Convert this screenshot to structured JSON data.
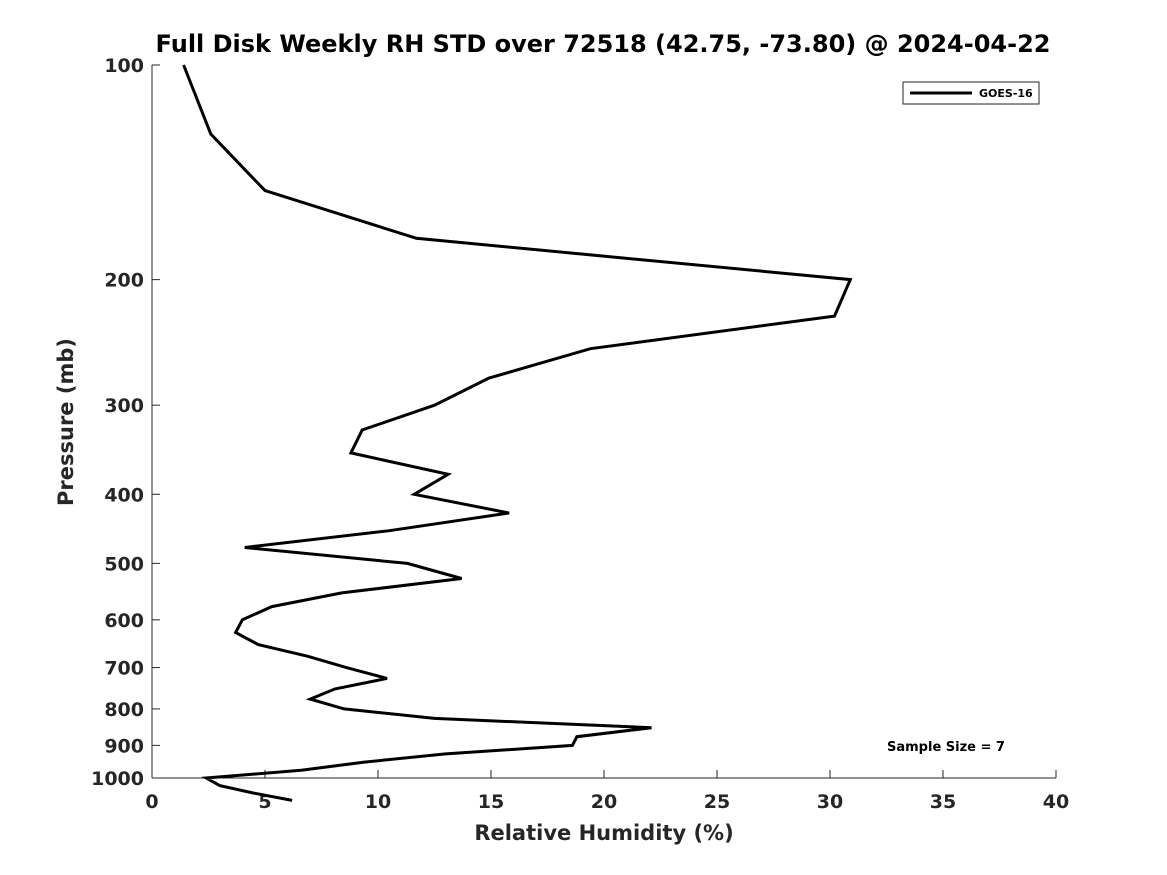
{
  "chart_data": {
    "type": "line",
    "title": "Full Disk Weekly RH STD over 72518 (42.75, -73.80) @ 2024-04-22",
    "xlabel": "Relative Humidity (%)",
    "ylabel": "Pressure (mb)",
    "xlim": [
      0,
      40
    ],
    "ylim": [
      100,
      1000
    ],
    "y_scale": "log",
    "y_reversed": true,
    "x_ticks": [
      0,
      5,
      10,
      15,
      20,
      25,
      30,
      35,
      40
    ],
    "y_ticks": [
      100,
      200,
      300,
      400,
      500,
      600,
      700,
      800,
      900,
      1000
    ],
    "grid": false,
    "legend_location": "top-right",
    "colors": {
      "line": "#000000",
      "axis": "#262626"
    },
    "series": [
      {
        "name": "GOES-16",
        "points": [
          {
            "p": 100,
            "v": 1.4
          },
          {
            "p": 125,
            "v": 2.6
          },
          {
            "p": 150,
            "v": 5.0
          },
          {
            "p": 175,
            "v": 11.7
          },
          {
            "p": 200,
            "v": 30.9
          },
          {
            "p": 225,
            "v": 30.2
          },
          {
            "p": 250,
            "v": 19.4
          },
          {
            "p": 275,
            "v": 14.9
          },
          {
            "p": 300,
            "v": 12.5
          },
          {
            "p": 325,
            "v": 9.3
          },
          {
            "p": 350,
            "v": 8.8
          },
          {
            "p": 375,
            "v": 13.1
          },
          {
            "p": 400,
            "v": 11.6
          },
          {
            "p": 425,
            "v": 15.8
          },
          {
            "p": 450,
            "v": 10.5
          },
          {
            "p": 475,
            "v": 4.1
          },
          {
            "p": 500,
            "v": 11.3
          },
          {
            "p": 525,
            "v": 13.7
          },
          {
            "p": 550,
            "v": 8.4
          },
          {
            "p": 575,
            "v": 5.3
          },
          {
            "p": 600,
            "v": 4.0
          },
          {
            "p": 625,
            "v": 3.7
          },
          {
            "p": 650,
            "v": 4.7
          },
          {
            "p": 675,
            "v": 6.9
          },
          {
            "p": 700,
            "v": 8.6
          },
          {
            "p": 725,
            "v": 10.4
          },
          {
            "p": 750,
            "v": 8.1
          },
          {
            "p": 775,
            "v": 7.0
          },
          {
            "p": 800,
            "v": 8.5
          },
          {
            "p": 825,
            "v": 12.5
          },
          {
            "p": 850,
            "v": 22.1
          },
          {
            "p": 875,
            "v": 18.8
          },
          {
            "p": 900,
            "v": 18.6
          },
          {
            "p": 925,
            "v": 13.0
          },
          {
            "p": 950,
            "v": 9.4
          },
          {
            "p": 975,
            "v": 6.6
          },
          {
            "p": 1000,
            "v": 2.4
          },
          {
            "p": 1025,
            "v": 3.0
          },
          {
            "p": 1050,
            "v": 4.5
          },
          {
            "p": 1075,
            "v": 6.2
          }
        ]
      }
    ],
    "annotations": [
      "Sample Size = 7"
    ]
  }
}
